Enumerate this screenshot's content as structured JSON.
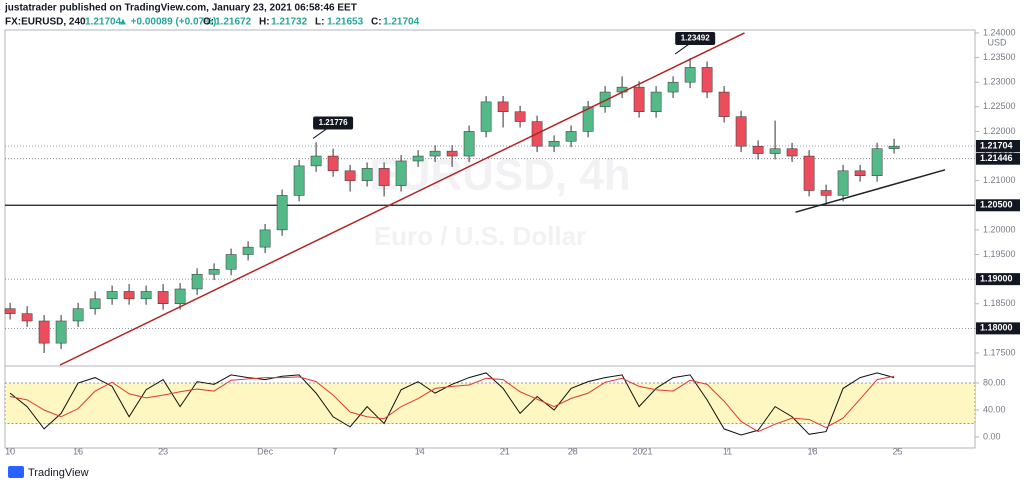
{
  "header": {
    "publisher": "justatrader published on TradingView.com, January 23, 2021 06:58:46 EET",
    "symbol": "FX:EURUSD, 240",
    "last": "1.21704",
    "change": "▲ +0.00089 (+0.07%)",
    "ohlc": [
      {
        "key": "O:",
        "value": "1.21672"
      },
      {
        "key": "H:",
        "value": "1.21732"
      },
      {
        "key": "L:",
        "value": "1.21653"
      },
      {
        "key": "C:",
        "value": "1.21704"
      }
    ],
    "watermark": "EURUSD, 4h",
    "watermark_sub": "Euro / U.S. Dollar",
    "currency": "USD",
    "footer": "TradingView"
  },
  "chart_data": [
    {
      "type": "candlestick",
      "up_color": "#53b987",
      "down_color": "#eb4d5c",
      "x": [
        0,
        1,
        2,
        3,
        4,
        5,
        6,
        7,
        8,
        9,
        10,
        11,
        12,
        13,
        14,
        15,
        16,
        17,
        18,
        19,
        20,
        21,
        22,
        23,
        24,
        25,
        26,
        27,
        28,
        29,
        30,
        31,
        32,
        33,
        34,
        35,
        36,
        37,
        38,
        39,
        40,
        41,
        42,
        43,
        44,
        45,
        46,
        47,
        48,
        49,
        50,
        51,
        52
      ],
      "open": [
        1.184,
        1.183,
        1.1815,
        1.177,
        1.1815,
        1.184,
        1.186,
        1.1875,
        1.186,
        1.1875,
        1.185,
        1.188,
        1.191,
        1.192,
        1.195,
        1.1965,
        1.2,
        1.207,
        1.213,
        1.215,
        1.212,
        1.21,
        1.2125,
        1.209,
        1.214,
        1.215,
        1.216,
        1.215,
        1.22,
        1.226,
        1.224,
        1.222,
        1.217,
        1.218,
        1.22,
        1.225,
        1.228,
        1.229,
        1.224,
        1.228,
        1.23,
        1.233,
        1.228,
        1.223,
        1.217,
        1.2155,
        1.2165,
        1.215,
        1.208,
        1.207,
        1.212,
        1.211,
        1.2165
      ],
      "high": [
        1.1852,
        1.1845,
        1.1827,
        1.1827,
        1.1852,
        1.1875,
        1.1887,
        1.189,
        1.1887,
        1.189,
        1.1892,
        1.1922,
        1.1932,
        1.1962,
        1.1977,
        1.2012,
        1.2082,
        1.2142,
        1.2178,
        1.2165,
        1.2132,
        1.2137,
        1.2137,
        1.2152,
        1.2162,
        1.2172,
        1.2172,
        1.2212,
        1.2272,
        1.2272,
        1.2252,
        1.2232,
        1.2192,
        1.2212,
        1.2262,
        1.2292,
        1.2312,
        1.2302,
        1.2292,
        1.2312,
        1.2349,
        1.2342,
        1.2292,
        1.2242,
        1.2182,
        1.2222,
        1.2177,
        1.2162,
        1.2092,
        1.2132,
        1.2132,
        1.2177,
        1.2185
      ],
      "low": [
        1.1818,
        1.1803,
        1.175,
        1.1758,
        1.1803,
        1.1828,
        1.1848,
        1.1848,
        1.1848,
        1.1838,
        1.1838,
        1.1868,
        1.1898,
        1.1908,
        1.1938,
        1.1953,
        1.1988,
        1.2058,
        1.2118,
        1.2108,
        1.2078,
        1.2088,
        1.2068,
        1.2078,
        1.2128,
        1.2138,
        1.2128,
        1.2138,
        1.2188,
        1.2208,
        1.2208,
        1.2158,
        1.2158,
        1.2168,
        1.2188,
        1.2238,
        1.2268,
        1.2228,
        1.2228,
        1.2268,
        1.2288,
        1.2268,
        1.2218,
        1.2158,
        1.2143,
        1.2143,
        1.2138,
        1.2068,
        1.2052,
        1.2058,
        1.2098,
        1.2098,
        1.2155
      ],
      "close": [
        1.183,
        1.1815,
        1.177,
        1.1815,
        1.184,
        1.186,
        1.1875,
        1.186,
        1.1875,
        1.185,
        1.188,
        1.191,
        1.192,
        1.195,
        1.1965,
        1.2,
        1.207,
        1.213,
        1.215,
        1.212,
        1.21,
        1.2125,
        1.209,
        1.214,
        1.215,
        1.216,
        1.215,
        1.22,
        1.226,
        1.224,
        1.222,
        1.217,
        1.218,
        1.22,
        1.225,
        1.228,
        1.229,
        1.224,
        1.228,
        1.23,
        1.233,
        1.228,
        1.223,
        1.217,
        1.2155,
        1.2165,
        1.215,
        1.208,
        1.207,
        1.212,
        1.211,
        1.2165,
        1.217
      ],
      "xlim": [
        -0.3,
        56.76
      ],
      "xticks": [
        {
          "value": 0,
          "label": "10"
        },
        {
          "value": 4,
          "label": "16"
        },
        {
          "value": 9,
          "label": "23"
        },
        {
          "value": 15,
          "label": "Dec"
        },
        {
          "value": 19.1,
          "label": "7"
        },
        {
          "value": 24.1,
          "label": "14"
        },
        {
          "value": 29.1,
          "label": "21"
        },
        {
          "value": 33.1,
          "label": "28"
        },
        {
          "value": 37.2,
          "label": "2021"
        },
        {
          "value": 42.2,
          "label": "11"
        },
        {
          "value": 47.2,
          "label": "18"
        },
        {
          "value": 52.2,
          "label": "25"
        }
      ],
      "ylim": [
        1.17256,
        1.2406
      ],
      "yticks": [
        {
          "value": 1.175,
          "label": "1.17500"
        },
        {
          "value": 1.18,
          "label": "1.18000"
        },
        {
          "value": 1.185,
          "label": "1.18500"
        },
        {
          "value": 1.19,
          "label": "1.19000"
        },
        {
          "value": 1.195,
          "label": "1.19500"
        },
        {
          "value": 1.2,
          "label": "1.20000"
        },
        {
          "value": 1.205,
          "label": "1.20500"
        },
        {
          "value": 1.21,
          "label": "1.21000"
        },
        {
          "value": 1.215,
          "label": "1.21500"
        },
        {
          "value": 1.22,
          "label": "1.22000"
        },
        {
          "value": 1.225,
          "label": "1.22500"
        },
        {
          "value": 1.23,
          "label": "1.23000"
        },
        {
          "value": 1.235,
          "label": "1.23500"
        },
        {
          "value": 1.24,
          "label": "1.24000"
        }
      ],
      "levels": [
        {
          "value": 1.21704,
          "label": "1.21704",
          "style": "dotted"
        },
        {
          "value": 1.21446,
          "label": "1.21446",
          "style": "dotted"
        },
        {
          "value": 1.205,
          "label": "1.20500",
          "style": "solid"
        },
        {
          "value": 1.19,
          "label": "1.19000",
          "style": "dotted"
        },
        {
          "value": 1.18,
          "label": "1.18000",
          "style": "dotted"
        }
      ],
      "trendlines": [
        {
          "x": [
            2.94,
            43.2
          ],
          "values": [
            1.17256,
            1.24
          ],
          "color": "#b22222"
        },
        {
          "x": [
            46.2,
            55
          ],
          "values": [
            1.2036,
            1.2122
          ],
          "color": "#222222"
        }
      ],
      "callouts": [
        {
          "x": 19,
          "value": 1.21776
        },
        {
          "x": 40.3,
          "value": 1.23492
        }
      ]
    },
    {
      "type": "line",
      "band": [
        20,
        80
      ],
      "band_color": "#fff7c2",
      "x": [
        0,
        1,
        2,
        3,
        4,
        5,
        6,
        7,
        8,
        9,
        10,
        11,
        12,
        13,
        14,
        15,
        16,
        17,
        18,
        19,
        20,
        21,
        22,
        23,
        24,
        25,
        26,
        27,
        28,
        29,
        30,
        31,
        32,
        33,
        34,
        35,
        36,
        37,
        38,
        39,
        40,
        41,
        42,
        43,
        44,
        45,
        46,
        47,
        48,
        49,
        50,
        51,
        52
      ],
      "series": [
        {
          "color": "#111111",
          "values": [
            65,
            45,
            12,
            35,
            80,
            88,
            75,
            30,
            70,
            85,
            45,
            82,
            78,
            92,
            88,
            85,
            90,
            92,
            65,
            30,
            15,
            45,
            20,
            70,
            82,
            65,
            78,
            88,
            95,
            72,
            35,
            60,
            40,
            72,
            82,
            88,
            92,
            45,
            72,
            88,
            92,
            55,
            12,
            3,
            10,
            45,
            30,
            4,
            8,
            72,
            88,
            95,
            88
          ]
        },
        {
          "color": "#e03a2f",
          "values": [
            60,
            55,
            40,
            30,
            42,
            68,
            81,
            64,
            58,
            62,
            67,
            71,
            68,
            84,
            86,
            88,
            88,
            89,
            82,
            62,
            37,
            30,
            27,
            45,
            57,
            72,
            75,
            77,
            87,
            85,
            67,
            56,
            45,
            57,
            65,
            81,
            87,
            75,
            70,
            68,
            84,
            78,
            53,
            23,
            8,
            19,
            28,
            26,
            14,
            28,
            56,
            85,
            90
          ]
        }
      ],
      "ylim": [
        -14.8,
        102.2
      ],
      "yticks": [
        {
          "value": 0,
          "label": "0.00"
        },
        {
          "value": 40,
          "label": "40.00"
        },
        {
          "value": 80,
          "label": "80.00"
        }
      ]
    }
  ]
}
